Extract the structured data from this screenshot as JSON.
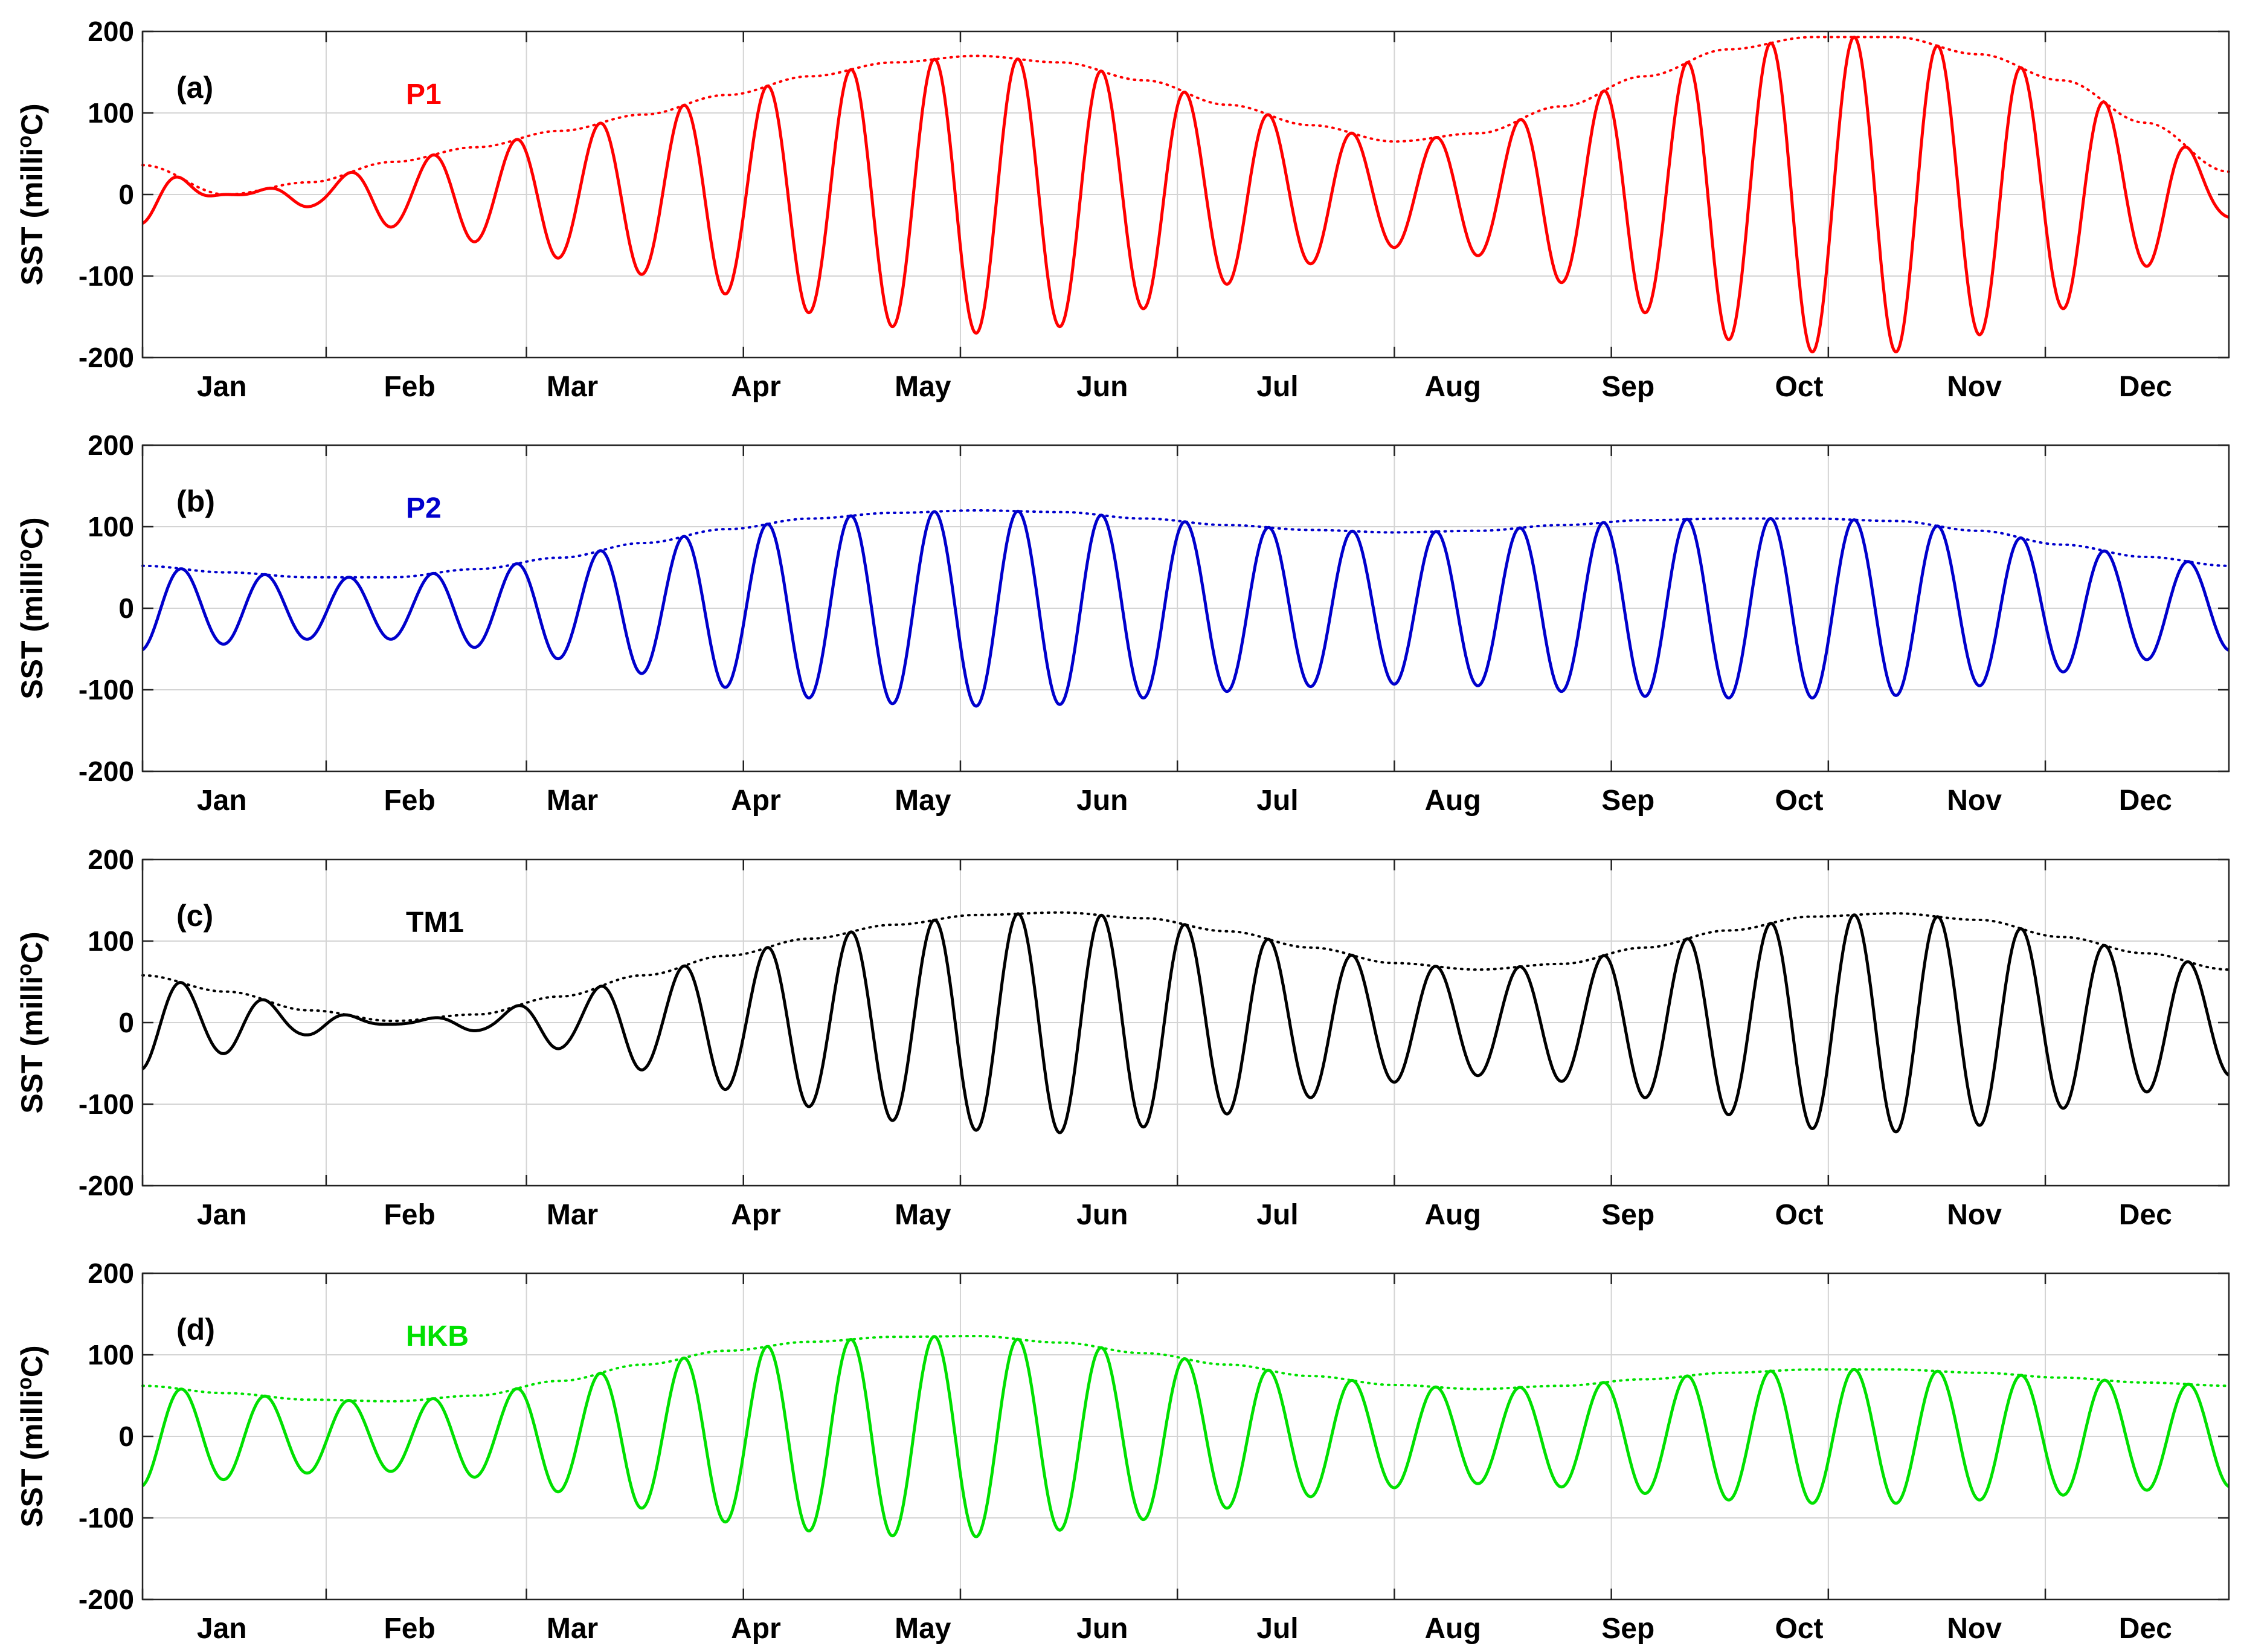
{
  "chart_data": [
    {
      "type": "line",
      "panel_label": "(a)",
      "series_label": "P1",
      "color": "#ff0000",
      "ylabel": "SST (milli°C)",
      "ylabel_parts": [
        "SST (milli",
        "o",
        "C)"
      ],
      "ylim": [
        -200,
        200
      ],
      "yticks": [
        "200",
        "100",
        "0",
        "-100",
        "-200"
      ],
      "xlim": [
        0,
        25
      ],
      "month_ticks": [
        0,
        2.2,
        4.6,
        7.2,
        9.8,
        12.4,
        15.0,
        17.6,
        20.2,
        22.8
      ],
      "month_labels": [
        "Jan",
        "Feb",
        "Mar",
        "Apr",
        "May",
        "Jun",
        "Jul",
        "Aug",
        "Sep",
        "Oct",
        "Nov",
        "Dec"
      ],
      "month_label_x": [
        0.95,
        3.2,
        5.15,
        7.35,
        9.35,
        11.5,
        13.6,
        15.7,
        17.8,
        19.85,
        21.95,
        24.0
      ],
      "carrier": {
        "periods": 24.95,
        "phase": 3.34
      },
      "envelope": [
        [
          0,
          36
        ],
        [
          1,
          0
        ],
        [
          2,
          15
        ],
        [
          3,
          40
        ],
        [
          4,
          58
        ],
        [
          5,
          78
        ],
        [
          6,
          98
        ],
        [
          7,
          122
        ],
        [
          8,
          145
        ],
        [
          9,
          162
        ],
        [
          10,
          170
        ],
        [
          11,
          162
        ],
        [
          12,
          140
        ],
        [
          13,
          110
        ],
        [
          14,
          85
        ],
        [
          15,
          65
        ],
        [
          16,
          75
        ],
        [
          17,
          108
        ],
        [
          18,
          145
        ],
        [
          19,
          178
        ],
        [
          20,
          193
        ],
        [
          21,
          193
        ],
        [
          22,
          172
        ],
        [
          23,
          140
        ],
        [
          24,
          88
        ],
        [
          25,
          28
        ]
      ]
    },
    {
      "type": "line",
      "panel_label": "(b)",
      "series_label": "P2",
      "color": "#0000cc",
      "ylabel": "SST (milli°C)",
      "ylabel_parts": [
        "SST (milli",
        "o",
        "C)"
      ],
      "ylim": [
        -200,
        200
      ],
      "yticks": [
        "200",
        "100",
        "0",
        "-100",
        "-200"
      ],
      "xlim": [
        0,
        25
      ],
      "month_ticks": [
        0,
        2.2,
        4.6,
        7.2,
        9.8,
        12.4,
        15.0,
        17.6,
        20.2,
        22.8
      ],
      "month_labels": [
        "Jan",
        "Feb",
        "Mar",
        "Apr",
        "May",
        "Jun",
        "Jul",
        "Aug",
        "Sep",
        "Oct",
        "Nov",
        "Dec"
      ],
      "month_label_x": [
        0.95,
        3.2,
        5.15,
        7.35,
        9.35,
        11.5,
        13.6,
        15.7,
        17.8,
        19.85,
        21.95,
        24.0
      ],
      "carrier": {
        "periods": 24.95,
        "phase": 3.34
      },
      "envelope": [
        [
          0,
          52
        ],
        [
          1,
          44
        ],
        [
          2,
          38
        ],
        [
          3,
          38
        ],
        [
          4,
          48
        ],
        [
          5,
          62
        ],
        [
          6,
          80
        ],
        [
          7,
          97
        ],
        [
          8,
          110
        ],
        [
          9,
          117
        ],
        [
          10,
          120
        ],
        [
          11,
          118
        ],
        [
          12,
          110
        ],
        [
          13,
          102
        ],
        [
          14,
          96
        ],
        [
          15,
          93
        ],
        [
          16,
          95
        ],
        [
          17,
          102
        ],
        [
          18,
          108
        ],
        [
          19,
          110
        ],
        [
          20,
          110
        ],
        [
          21,
          107
        ],
        [
          22,
          95
        ],
        [
          23,
          78
        ],
        [
          24,
          63
        ],
        [
          25,
          52
        ]
      ]
    },
    {
      "type": "line",
      "panel_label": "(c)",
      "series_label": "TM1",
      "color": "#000000",
      "ylabel": "SST (milli°C)",
      "ylabel_parts": [
        "SST (milli",
        "o",
        "C)"
      ],
      "ylim": [
        -200,
        200
      ],
      "yticks": [
        "200",
        "100",
        "0",
        "-100",
        "-200"
      ],
      "xlim": [
        0,
        25
      ],
      "month_ticks": [
        0,
        2.2,
        4.6,
        7.2,
        9.8,
        12.4,
        15.0,
        17.6,
        20.2,
        22.8
      ],
      "month_labels": [
        "Jan",
        "Feb",
        "Mar",
        "Apr",
        "May",
        "Jun",
        "Jul",
        "Aug",
        "Sep",
        "Oct",
        "Nov",
        "Dec"
      ],
      "month_label_x": [
        0.95,
        3.2,
        5.15,
        7.35,
        9.35,
        11.5,
        13.6,
        15.7,
        17.8,
        19.85,
        21.95,
        24.0
      ],
      "carrier": {
        "periods": 24.95,
        "phase": 3.34
      },
      "envelope": [
        [
          0,
          58
        ],
        [
          1,
          38
        ],
        [
          2,
          15
        ],
        [
          3,
          2
        ],
        [
          4,
          10
        ],
        [
          5,
          32
        ],
        [
          6,
          58
        ],
        [
          7,
          82
        ],
        [
          8,
          103
        ],
        [
          9,
          120
        ],
        [
          10,
          132
        ],
        [
          11,
          135
        ],
        [
          12,
          128
        ],
        [
          13,
          112
        ],
        [
          14,
          92
        ],
        [
          15,
          73
        ],
        [
          16,
          65
        ],
        [
          17,
          72
        ],
        [
          18,
          92
        ],
        [
          19,
          113
        ],
        [
          20,
          130
        ],
        [
          21,
          134
        ],
        [
          22,
          126
        ],
        [
          23,
          105
        ],
        [
          24,
          85
        ],
        [
          25,
          65
        ]
      ]
    },
    {
      "type": "line",
      "panel_label": "(d)",
      "series_label": "HKB",
      "color": "#00e000",
      "ylabel": "SST (milli°C)",
      "ylabel_parts": [
        "SST (milli",
        "o",
        "C)"
      ],
      "ylim": [
        -200,
        200
      ],
      "yticks": [
        "200",
        "100",
        "0",
        "-100",
        "-200"
      ],
      "xlim": [
        0,
        25
      ],
      "month_ticks": [
        0,
        2.2,
        4.6,
        7.2,
        9.8,
        12.4,
        15.0,
        17.6,
        20.2,
        22.8
      ],
      "month_labels": [
        "Jan",
        "Feb",
        "Mar",
        "Apr",
        "May",
        "Jun",
        "Jul",
        "Aug",
        "Sep",
        "Oct",
        "Nov",
        "Dec"
      ],
      "month_label_x": [
        0.95,
        3.2,
        5.15,
        7.35,
        9.35,
        11.5,
        13.6,
        15.7,
        17.8,
        19.85,
        21.95,
        24.0
      ],
      "carrier": {
        "periods": 24.95,
        "phase": 3.34
      },
      "envelope": [
        [
          0,
          62
        ],
        [
          1,
          53
        ],
        [
          2,
          45
        ],
        [
          3,
          43
        ],
        [
          4,
          50
        ],
        [
          5,
          68
        ],
        [
          6,
          88
        ],
        [
          7,
          105
        ],
        [
          8,
          116
        ],
        [
          9,
          122
        ],
        [
          10,
          123
        ],
        [
          11,
          115
        ],
        [
          12,
          102
        ],
        [
          13,
          88
        ],
        [
          14,
          74
        ],
        [
          15,
          63
        ],
        [
          16,
          58
        ],
        [
          17,
          62
        ],
        [
          18,
          70
        ],
        [
          19,
          78
        ],
        [
          20,
          82
        ],
        [
          21,
          82
        ],
        [
          22,
          78
        ],
        [
          23,
          72
        ],
        [
          24,
          66
        ],
        [
          25,
          62
        ]
      ]
    }
  ]
}
